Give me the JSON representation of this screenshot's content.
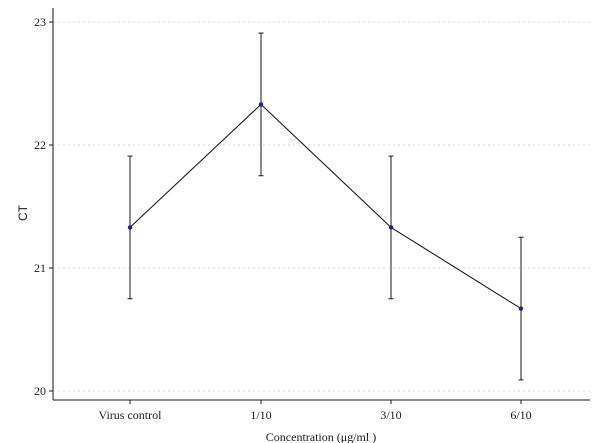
{
  "chart_data": {
    "type": "line",
    "title": "",
    "xlabel": "Concentration (μg/ml )",
    "ylabel": "CT",
    "categories": [
      "Virus control",
      "1/10",
      "3/10",
      "6/10"
    ],
    "series": [
      {
        "values": [
          21.33,
          22.33,
          21.33,
          20.67
        ],
        "error_low": [
          20.75,
          21.75,
          20.75,
          20.09
        ],
        "error_high": [
          21.91,
          22.91,
          21.91,
          21.25
        ],
        "color": "#1a1a1a",
        "marker_color": "#1f1f8f"
      }
    ],
    "ylim": [
      20,
      23
    ],
    "yticks": [
      "20",
      "21",
      "22",
      "23"
    ],
    "grid": true,
    "grid_color": "#d9d9d9"
  }
}
